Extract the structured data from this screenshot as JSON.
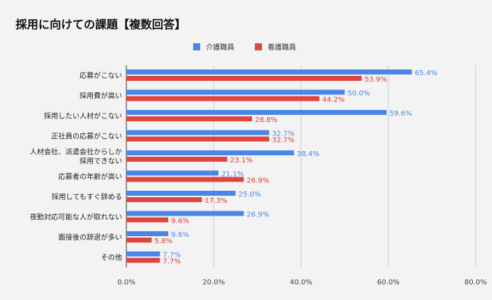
{
  "chart_data": {
    "type": "bar",
    "orientation": "horizontal",
    "title": "採用に向けての課題【複数回答】",
    "categories": [
      "応募がこない",
      "採用費が高い",
      "採用したい人材がこない",
      "正社員の応募がこない",
      "人材会社、派遣会社からしか\n採用できない",
      "応募者の年齢が高い",
      "採用してもすぐ辞める",
      "夜勤対応可能な人が取れない",
      "面接後の辞退が多い",
      "その他"
    ],
    "series": [
      {
        "name": "介護職員",
        "color": "#4a86e8",
        "values": [
          65.4,
          50.0,
          59.6,
          32.7,
          38.4,
          21.1,
          25.0,
          26.9,
          9.6,
          7.7
        ],
        "labels": [
          "65.4%",
          "50.0%",
          "59.6%",
          "32.7%",
          "38.4%",
          "21.1%",
          "25.0%",
          "26.9%",
          "9.6%",
          "7.7%"
        ]
      },
      {
        "name": "看護職員",
        "color": "#e0443e",
        "values": [
          53.9,
          44.2,
          28.8,
          32.7,
          23.1,
          26.9,
          17.3,
          9.6,
          5.8,
          7.7
        ],
        "labels": [
          "53.9%",
          "44.2%",
          "28.8%",
          "32.7%",
          "23.1%",
          "26.9%",
          "17.3%",
          "9.6%",
          "5.8%",
          "7.7%"
        ]
      }
    ],
    "xlim": [
      0,
      80
    ],
    "xticks": [
      0,
      20,
      40,
      60,
      80
    ],
    "xtick_labels": [
      "0.0%",
      "20.0%",
      "40.0%",
      "60.0%",
      "80.0%"
    ],
    "grid": true,
    "legend_position": "top-center"
  }
}
